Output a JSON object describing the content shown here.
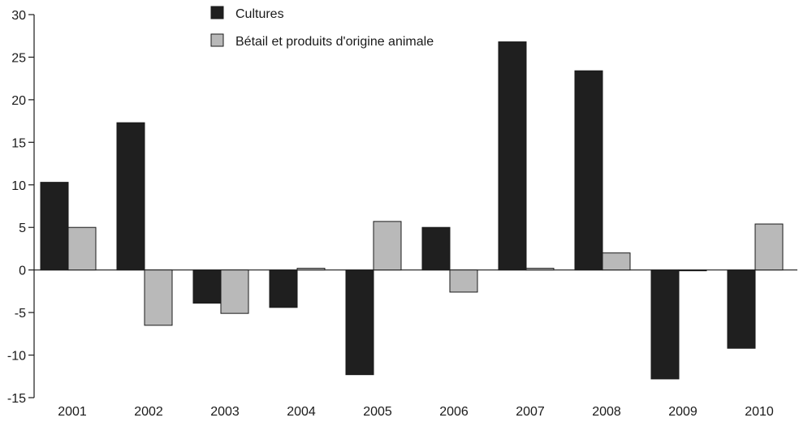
{
  "chart_data": {
    "type": "bar",
    "title": "",
    "xlabel": "",
    "ylabel": "",
    "ylim": [
      -15,
      30
    ],
    "yticks": [
      30,
      25,
      20,
      15,
      10,
      5,
      0,
      -5,
      -10,
      -15
    ],
    "categories": [
      "2001",
      "2002",
      "2003",
      "2004",
      "2005",
      "2006",
      "2007",
      "2008",
      "2009",
      "2010"
    ],
    "series": [
      {
        "name": "Cultures",
        "color": "#1f1f1f",
        "values": [
          10.3,
          17.3,
          -3.9,
          -4.4,
          -12.3,
          5.0,
          26.8,
          23.4,
          -12.8,
          -9.2
        ]
      },
      {
        "name": "Bétail et produits d'origine animale",
        "color": "#b9b9b9",
        "values": [
          5.0,
          -6.5,
          -5.1,
          0.2,
          5.7,
          -2.6,
          0.2,
          2.0,
          0.0,
          5.4
        ]
      }
    ],
    "legend_position": "top-center",
    "grid": false
  }
}
